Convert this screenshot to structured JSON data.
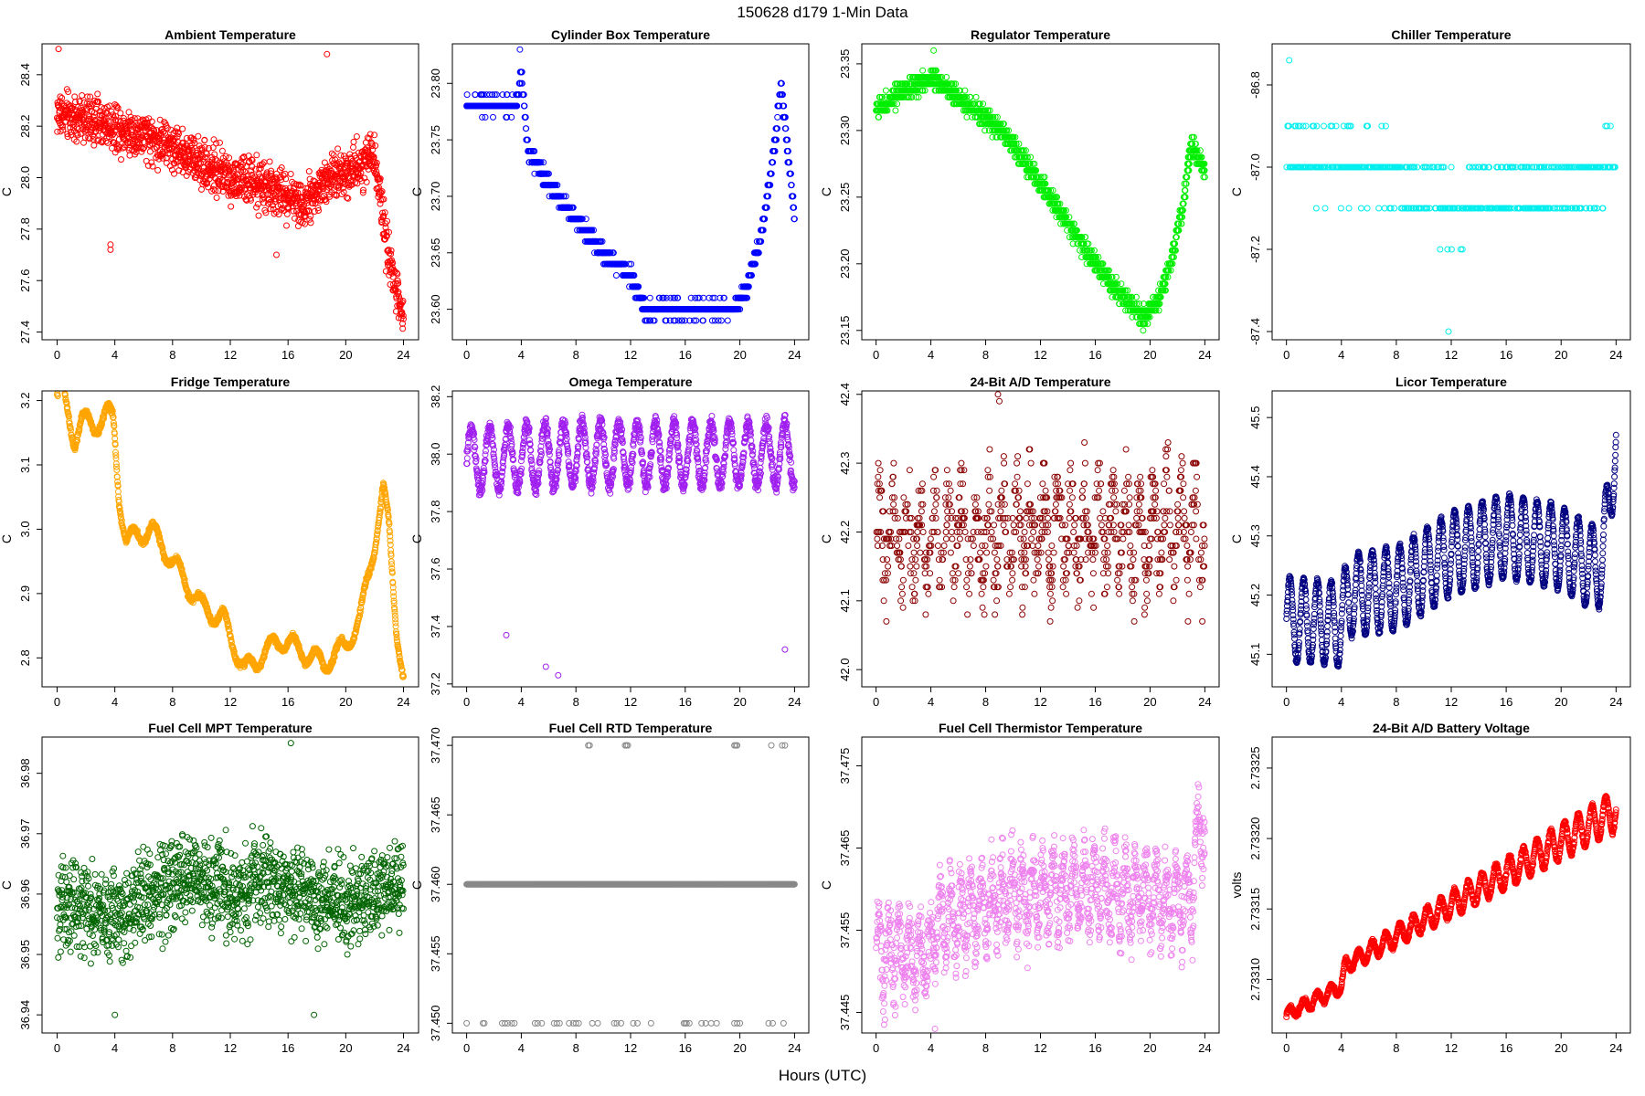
{
  "suptitle": "150628   d179   1-Min Data",
  "xlabel": "Hours (UTC)",
  "chart_data": [
    {
      "type": "scatter",
      "title": "Ambient Temperature",
      "ylabel": "C",
      "color": "#ff0000",
      "xlim": [
        0,
        24
      ],
      "xticks": [
        0,
        4,
        8,
        12,
        16,
        20,
        24
      ],
      "ylim": [
        27.37,
        28.52
      ],
      "yticks": [
        27.4,
        27.6,
        27.8,
        28.0,
        28.2,
        28.4
      ],
      "yticklabels": [
        "27.4",
        "27.6",
        "27.8",
        "28.0",
        "28.2",
        "28.4"
      ],
      "trend": {
        "x": [
          0,
          4,
          8,
          12,
          15,
          17,
          19,
          21,
          22,
          22.8,
          23.5,
          24
        ],
        "y": [
          28.25,
          28.2,
          28.12,
          28.0,
          27.95,
          27.9,
          28.0,
          28.05,
          28.1,
          27.75,
          27.55,
          27.45
        ]
      },
      "noise": 0.085,
      "outliers": [
        [
          0.1,
          28.5
        ],
        [
          3.7,
          27.72
        ],
        [
          3.7,
          27.74
        ],
        [
          18.7,
          28.48
        ],
        [
          15.2,
          27.7
        ]
      ]
    },
    {
      "type": "scatter",
      "title": "Cylinder Box Temperature",
      "ylabel": "C",
      "color": "#0000ff",
      "xlim": [
        0,
        24
      ],
      "xticks": [
        0,
        4,
        8,
        12,
        16,
        20,
        24
      ],
      "ylim": [
        23.573,
        23.835
      ],
      "yticks": [
        23.6,
        23.65,
        23.7,
        23.75,
        23.8
      ],
      "yticklabels": [
        "23.60",
        "23.65",
        "23.70",
        "23.75",
        "23.80"
      ],
      "trend": {
        "x": [
          0,
          3.6,
          4.0,
          4.5,
          6,
          8,
          10,
          12,
          13,
          14,
          16,
          18,
          19.5,
          20.5,
          21.5,
          22.5,
          23,
          23.5,
          24
        ],
        "y": [
          23.78,
          23.78,
          23.81,
          23.74,
          23.71,
          23.68,
          23.65,
          23.63,
          23.6,
          23.6,
          23.6,
          23.6,
          23.6,
          23.62,
          23.66,
          23.74,
          23.8,
          23.74,
          23.68
        ]
      },
      "noise": 0.006,
      "step": 0.01,
      "outliers": [
        [
          3.9,
          23.83
        ]
      ]
    },
    {
      "type": "scatter",
      "title": "Regulator Temperature",
      "ylabel": "C",
      "color": "#00ee00",
      "xlim": [
        0,
        24
      ],
      "xticks": [
        0,
        4,
        8,
        12,
        16,
        20,
        24
      ],
      "ylim": [
        23.143,
        23.365
      ],
      "yticks": [
        23.15,
        23.2,
        23.25,
        23.3,
        23.35
      ],
      "yticklabels": [
        "23.15",
        "23.20",
        "23.25",
        "23.30",
        "23.35"
      ],
      "trend": {
        "x": [
          0,
          2,
          4,
          6,
          8,
          10,
          12,
          14,
          16,
          18,
          19.5,
          20.5,
          21.5,
          22.5,
          23,
          24
        ],
        "y": [
          23.315,
          23.33,
          23.34,
          23.325,
          23.31,
          23.29,
          23.26,
          23.23,
          23.2,
          23.175,
          23.16,
          23.17,
          23.2,
          23.25,
          23.29,
          23.27
        ]
      },
      "noise": 0.007,
      "step": 0.005,
      "outliers": [
        [
          4.2,
          23.36
        ],
        [
          19.5,
          23.15
        ]
      ]
    },
    {
      "type": "scatter",
      "title": "Chiller Temperature",
      "ylabel": "C",
      "color": "#00eeee",
      "xlim": [
        0,
        24
      ],
      "xticks": [
        0,
        4,
        8,
        12,
        16,
        20,
        24
      ],
      "ylim": [
        -87.42,
        -86.7
      ],
      "yticks": [
        -87.4,
        -87.2,
        -87.0,
        -86.8
      ],
      "yticklabels": [
        "-87.4",
        "-87.2",
        "-87.0",
        "-86.8"
      ],
      "trend": {
        "x": [
          0,
          4,
          8,
          12,
          16,
          20,
          24
        ],
        "y": [
          -86.97,
          -86.99,
          -87.02,
          -87.1,
          -87.07,
          -87.06,
          -87.0
        ]
      },
      "noise": 0.07,
      "step": 0.1,
      "density": 0.35,
      "outliers": [
        [
          0.2,
          -86.74
        ],
        [
          11.8,
          -87.4
        ]
      ]
    },
    {
      "type": "scatter",
      "title": "Fridge Temperature",
      "ylabel": "C",
      "color": "#ffa500",
      "xlim": [
        0,
        24
      ],
      "xticks": [
        0,
        4,
        8,
        12,
        16,
        20,
        24
      ],
      "ylim": [
        2.755,
        3.215
      ],
      "yticks": [
        2.8,
        2.9,
        3.0,
        3.1,
        3.2
      ],
      "yticklabels": [
        "2.8",
        "2.9",
        "3.0",
        "3.1",
        "3.2"
      ],
      "trend": {
        "x": [
          0,
          0.5,
          1.2,
          1.7,
          2.5,
          3.5,
          3.9,
          4.3,
          4.8,
          5.5,
          6.5,
          8,
          10,
          11.5,
          13,
          14,
          15.5,
          17,
          18.5,
          20,
          21,
          22,
          22.6,
          23,
          23.5,
          24
        ],
        "y": [
          3.21,
          3.2,
          3.14,
          3.17,
          3.16,
          3.18,
          3.17,
          3.05,
          2.98,
          2.99,
          3.0,
          2.95,
          2.88,
          2.86,
          2.78,
          2.8,
          2.83,
          2.81,
          2.79,
          2.82,
          2.86,
          2.98,
          3.06,
          3.0,
          2.85,
          2.77
        ]
      },
      "noise": 0.004,
      "osc": {
        "amp": 0.015,
        "period": 1.6
      },
      "outliers": []
    },
    {
      "type": "scatter",
      "title": "Omega Temperature",
      "ylabel": "C",
      "color": "#a020f0",
      "xlim": [
        0,
        24
      ],
      "xticks": [
        0,
        4,
        8,
        12,
        16,
        20,
        24
      ],
      "ylim": [
        37.19,
        38.22
      ],
      "yticks": [
        37.2,
        37.4,
        37.6,
        37.8,
        38.0,
        38.2
      ],
      "yticklabels": [
        "37.2",
        "37.4",
        "37.6",
        "37.8",
        "38.0",
        "38.2"
      ],
      "trend": {
        "x": [
          0,
          4,
          8,
          12,
          16,
          20,
          24
        ],
        "y": [
          37.98,
          37.99,
          38.0,
          38.0,
          38.0,
          38.0,
          38.0
        ]
      },
      "noise": 0.025,
      "osc": {
        "amp": 0.11,
        "period": 1.35
      },
      "outliers": [
        [
          2.9,
          37.37
        ],
        [
          5.8,
          37.26
        ],
        [
          6.7,
          37.23
        ],
        [
          23.3,
          37.32
        ]
      ]
    },
    {
      "type": "scatter",
      "title": "24-Bit A/D Temperature",
      "ylabel": "C",
      "color": "#8b0000",
      "xlim": [
        0,
        24
      ],
      "xticks": [
        0,
        4,
        8,
        12,
        16,
        20,
        24
      ],
      "ylim": [
        41.975,
        42.405
      ],
      "yticks": [
        42.0,
        42.1,
        42.2,
        42.3,
        42.4
      ],
      "yticklabels": [
        "42.0",
        "42.1",
        "42.2",
        "42.3",
        "42.4"
      ],
      "trend": {
        "x": [
          0,
          4,
          8,
          12,
          16,
          20,
          24
        ],
        "y": [
          42.2,
          42.19,
          42.19,
          42.2,
          42.2,
          42.2,
          42.2
        ]
      },
      "noise": 0.06,
      "osc": {
        "amp": 0.06,
        "period": 1.0
      },
      "step": 0.01,
      "density": 0.6,
      "outliers": [
        [
          8.9,
          42.4
        ],
        [
          9.0,
          42.39
        ]
      ]
    },
    {
      "type": "scatter",
      "title": "Licor Temperature",
      "ylabel": "C",
      "color": "#000080",
      "xlim": [
        0,
        24
      ],
      "xticks": [
        0,
        4,
        8,
        12,
        16,
        20,
        24
      ],
      "ylim": [
        45.045,
        45.545
      ],
      "yticks": [
        45.1,
        45.2,
        45.3,
        45.4,
        45.5
      ],
      "yticklabels": [
        "45.1",
        "45.2",
        "45.3",
        "45.4",
        "45.5"
      ],
      "trend": {
        "x": [
          0,
          4,
          4.5,
          8,
          12,
          16,
          20,
          22,
          23,
          24
        ],
        "y": [
          45.16,
          45.15,
          45.2,
          45.21,
          45.27,
          45.3,
          45.28,
          45.25,
          45.25,
          45.47
        ]
      },
      "noise": 0.004,
      "osc": {
        "amp": 0.07,
        "period": 1.0
      },
      "outliers": []
    },
    {
      "type": "scatter",
      "title": "Fuel Cell MPT Temperature",
      "ylabel": "C",
      "color": "#006400",
      "xlim": [
        0,
        24
      ],
      "xticks": [
        0,
        4,
        8,
        12,
        16,
        20,
        24
      ],
      "ylim": [
        36.937,
        36.986
      ],
      "yticks": [
        36.94,
        36.95,
        36.96,
        36.97,
        36.98
      ],
      "yticklabels": [
        "36.94",
        "36.95",
        "36.96",
        "36.97",
        "36.98"
      ],
      "trend": {
        "x": [
          0,
          4,
          8,
          12,
          16,
          20,
          24
        ],
        "y": [
          36.958,
          36.956,
          36.962,
          36.961,
          36.962,
          36.958,
          36.962
        ]
      },
      "noise": 0.007,
      "outliers": [
        [
          4.0,
          36.94
        ],
        [
          17.8,
          36.94
        ],
        [
          16.2,
          36.985
        ]
      ]
    },
    {
      "type": "scatter",
      "title": "Fuel Cell RTD Temperature",
      "ylabel": "C",
      "color": "#888888",
      "xlim": [
        0,
        24
      ],
      "xticks": [
        0,
        4,
        8,
        12,
        16,
        20,
        24
      ],
      "ylim": [
        37.4493,
        37.4706
      ],
      "yticks": [
        37.45,
        37.455,
        37.46,
        37.465,
        37.47
      ],
      "yticklabels": [
        "37.450",
        "37.455",
        "37.460",
        "37.465",
        "37.470"
      ],
      "levels": {
        "main": 37.46,
        "upper": 37.47,
        "lower": 37.45,
        "upper_x": [
          8.9,
          9.0,
          11.6,
          11.7,
          11.8,
          19.6,
          19.7,
          19.8,
          22.3,
          23.1,
          23.3
        ],
        "lower_x": [
          0,
          1.2,
          1.3,
          2.6,
          2.8,
          3.0,
          3.3,
          3.5,
          5.0,
          5.2,
          5.5,
          6.4,
          6.6,
          6.8,
          7.5,
          7.8,
          8.0,
          8.2,
          9.2,
          9.6,
          10.8,
          11.0,
          11.3,
          12.2,
          12.5,
          13.5,
          15.9,
          16.0,
          16.1,
          16.3,
          17.2,
          17.5,
          17.9,
          18.3,
          19.6,
          19.8,
          20.0,
          22.1,
          22.4,
          23.2
        ]
      },
      "outliers": []
    },
    {
      "type": "scatter",
      "title": "Fuel Cell Thermistor Temperature",
      "ylabel": "C",
      "color": "#ee82ee",
      "xlim": [
        0,
        24
      ],
      "xticks": [
        0,
        4,
        8,
        12,
        16,
        20,
        24
      ],
      "ylim": [
        37.4425,
        37.4785
      ],
      "yticks": [
        37.445,
        37.455,
        37.465,
        37.475
      ],
      "yticklabels": [
        "37.445",
        "37.455",
        "37.465",
        "37.475"
      ],
      "trend": {
        "x": [
          0,
          4,
          4.5,
          8,
          12,
          16,
          20,
          22,
          23,
          23.5,
          24
        ],
        "y": [
          37.452,
          37.452,
          37.456,
          37.458,
          37.46,
          37.46,
          37.459,
          37.459,
          37.458,
          37.468,
          37.467
        ]
      },
      "noise": 0.0035,
      "osc": {
        "amp": 0.004,
        "period": 0.75
      },
      "outliers": [
        [
          4.3,
          37.443
        ]
      ]
    },
    {
      "type": "scatter",
      "title": "24-Bit A/D Battery Voltage",
      "ylabel": "volts",
      "color": "#ff0000",
      "xlim": [
        0,
        24
      ],
      "xticks": [
        0,
        4,
        8,
        12,
        16,
        20,
        24
      ],
      "ylim": [
        2.733062,
        2.733272
      ],
      "yticks": [
        2.7331,
        2.73315,
        2.7332,
        2.73325
      ],
      "yticklabels": [
        "2.73310",
        "2.73315",
        "2.73320",
        "2.73325"
      ],
      "trend": {
        "x": [
          0,
          4,
          4.3,
          24
        ],
        "y": [
          2.733075,
          2.733095,
          2.73311,
          2.73322
        ]
      },
      "noise": 1.5e-06,
      "osc": {
        "amp": 1.4e-05,
        "period": 1.0,
        "growth": true
      },
      "outliers": []
    }
  ]
}
